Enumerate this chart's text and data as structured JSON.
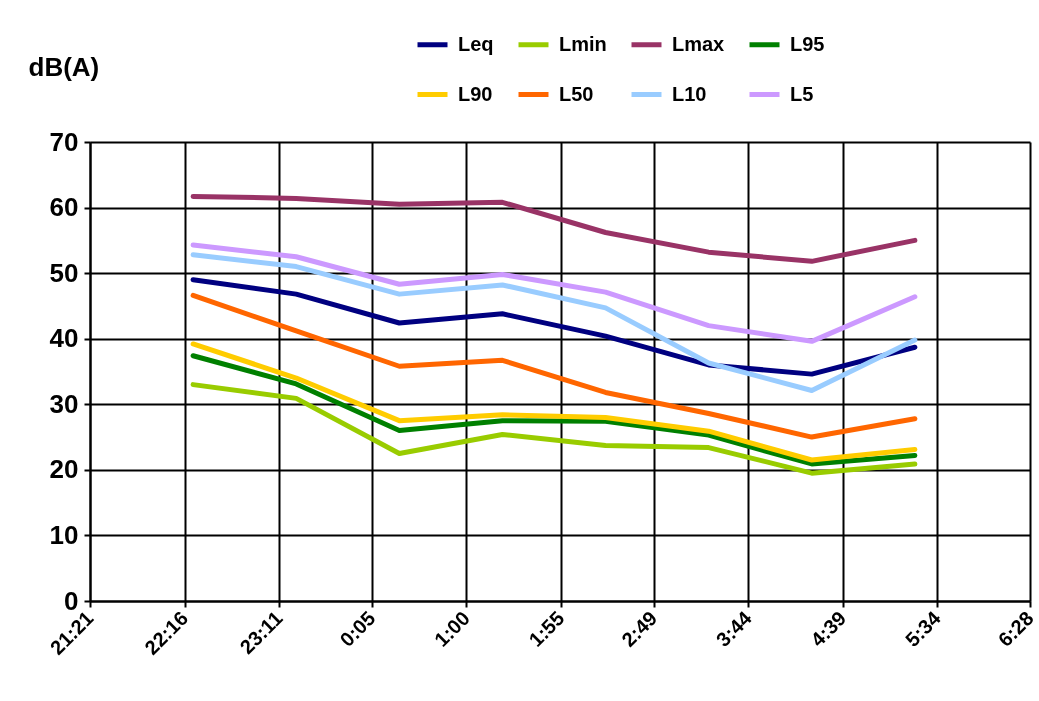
{
  "chart_data": {
    "type": "line",
    "ylabel": "dB(A)",
    "x": [
      "2000-01-01T22:21",
      "2000-01-01T23:21",
      "2000-01-02T00:21",
      "2000-01-02T01:21",
      "2000-01-02T02:21",
      "2000-01-02T03:21",
      "2000-01-02T04:21",
      "2000-01-02T05:21"
    ],
    "xlim": [
      "2000-01-01T21:21",
      "2000-01-02T06:28"
    ],
    "xticks": [
      {
        "value": "2000-01-01T21:21",
        "label": "21:21"
      },
      {
        "value": "2000-01-01T22:16",
        "label": "22:16"
      },
      {
        "value": "2000-01-01T23:11",
        "label": "23:11"
      },
      {
        "value": "2000-01-02T00:05",
        "label": "0:05"
      },
      {
        "value": "2000-01-02T01:00",
        "label": "1:00"
      },
      {
        "value": "2000-01-02T01:55",
        "label": "1:55"
      },
      {
        "value": "2000-01-02T02:49",
        "label": "2:49"
      },
      {
        "value": "2000-01-02T03:44",
        "label": "3:44"
      },
      {
        "value": "2000-01-02T04:39",
        "label": "4:39"
      },
      {
        "value": "2000-01-02T05:34",
        "label": "5:34"
      },
      {
        "value": "2000-01-02T06:28",
        "label": "6:28"
      }
    ],
    "ylim": [
      0,
      70
    ],
    "yticks": [
      0,
      10,
      20,
      30,
      40,
      50,
      60,
      70
    ],
    "grid": true,
    "legend": "top right",
    "line_style": "solid",
    "series": [
      {
        "name": "Leq",
        "color": "#000080",
        "values": [
          49.0,
          46.8,
          42.4,
          43.8,
          40.4,
          36.0,
          34.6,
          38.7
        ]
      },
      {
        "name": "Lmin",
        "color": "#99cc00",
        "values": [
          33.0,
          30.9,
          22.5,
          25.4,
          23.7,
          23.4,
          19.5,
          20.9
        ]
      },
      {
        "name": "Lmax",
        "color": "#993366",
        "values": [
          61.7,
          61.4,
          60.5,
          60.8,
          56.2,
          53.2,
          51.8,
          55.0
        ]
      },
      {
        "name": "L95",
        "color": "#008000",
        "values": [
          37.4,
          33.1,
          26.0,
          27.5,
          27.4,
          25.3,
          20.9,
          22.2
        ]
      },
      {
        "name": "L90",
        "color": "#ffcc00",
        "values": [
          39.2,
          34.0,
          27.5,
          28.4,
          28.0,
          25.9,
          21.5,
          23.1
        ]
      },
      {
        "name": "L50",
        "color": "#ff6600",
        "values": [
          46.6,
          41.2,
          35.8,
          36.7,
          31.8,
          28.6,
          25.0,
          27.8
        ]
      },
      {
        "name": "L10",
        "color": "#99ccff",
        "values": [
          52.8,
          51.0,
          46.8,
          48.2,
          44.7,
          36.3,
          32.1,
          39.8
        ]
      },
      {
        "name": "L5",
        "color": "#cc99ff",
        "values": [
          54.3,
          52.5,
          48.3,
          49.8,
          47.1,
          42.0,
          39.6,
          46.4
        ]
      }
    ]
  }
}
